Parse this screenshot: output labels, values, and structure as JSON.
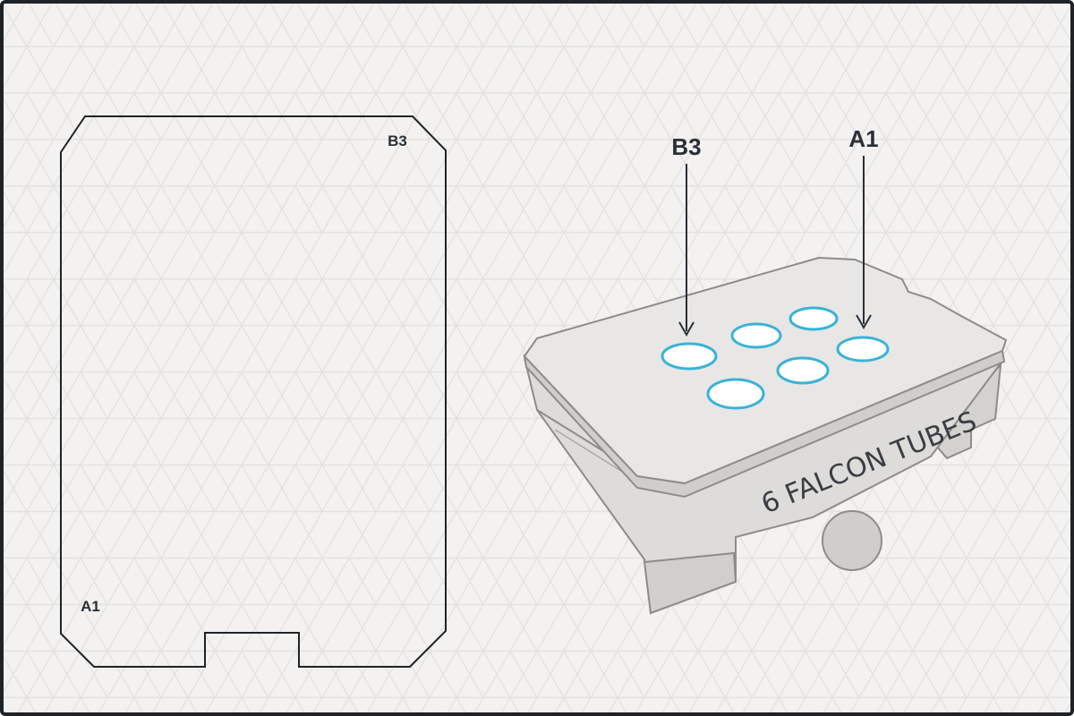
{
  "diagram": {
    "outline": {
      "corner_label_top_right": "B3",
      "corner_label_bottom_left": "A1"
    },
    "rack": {
      "side_text": "6 FALCON TUBES",
      "tube_count": 6,
      "callouts": {
        "left": "B3",
        "right": "A1"
      }
    },
    "colors": {
      "background": "#f3f2f1",
      "grid_lines": "#e4e2df",
      "frame": "#1f2327",
      "rack_top": "#e8e7e5",
      "rack_side": "#d9d8d6",
      "rack_stroke": "#8d8c8a",
      "tube_ring": "#39b3d6",
      "label_text": "#2a2f36"
    }
  }
}
